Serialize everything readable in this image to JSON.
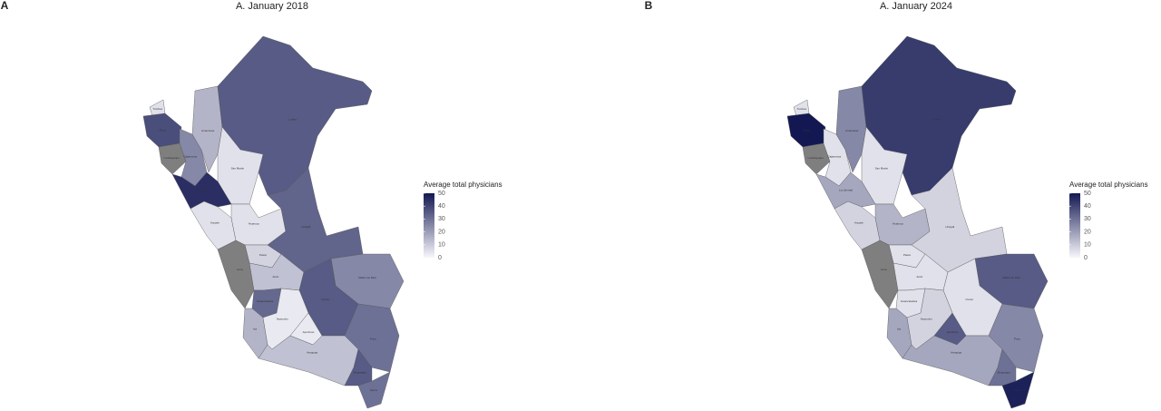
{
  "chart_data": [
    {
      "type": "choropleth",
      "panel_label": "A",
      "title": "A. January 2018",
      "legend_title": "Average total physicians",
      "lim": [
        0,
        50
      ],
      "legend_ticks": [
        0,
        10,
        20,
        30,
        40,
        50
      ],
      "low_color": "#f7f7fb",
      "high_color": "#131852",
      "na_color": "#7f7f7f",
      "regions": [
        {
          "name": "Tumbes",
          "value": 5
        },
        {
          "name": "Piura",
          "value": 38
        },
        {
          "name": "Lambayeque",
          "value": null
        },
        {
          "name": "Cajamarca",
          "value": 25
        },
        {
          "name": "Amazonas",
          "value": 15
        },
        {
          "name": "Loreto",
          "value": 35
        },
        {
          "name": "San Martin",
          "value": 5
        },
        {
          "name": "La Libertad",
          "value": 45
        },
        {
          "name": "Ancash",
          "value": 5
        },
        {
          "name": "Huanuco",
          "value": 5
        },
        {
          "name": "Pasco",
          "value": 8
        },
        {
          "name": "Ucayali",
          "value": 33
        },
        {
          "name": "Lima",
          "value": null
        },
        {
          "name": "Junin",
          "value": 12
        },
        {
          "name": "Madre de Dios",
          "value": 25
        },
        {
          "name": "Cusco",
          "value": 35
        },
        {
          "name": "Huancavelica",
          "value": 32
        },
        {
          "name": "Ica",
          "value": 15
        },
        {
          "name": "Ayacucho",
          "value": 3
        },
        {
          "name": "Apurimac",
          "value": 3
        },
        {
          "name": "Puno",
          "value": 30
        },
        {
          "name": "Arequipa",
          "value": 12
        },
        {
          "name": "Moquegua",
          "value": 35
        },
        {
          "name": "Tacna",
          "value": 30
        }
      ]
    },
    {
      "type": "choropleth",
      "panel_label": "B",
      "title": "A. January 2024",
      "legend_title": "Average total physicians",
      "lim": [
        0,
        50
      ],
      "legend_ticks": [
        0,
        10,
        20,
        30,
        40,
        50
      ],
      "low_color": "#f7f7fb",
      "high_color": "#131852",
      "na_color": "#7f7f7f",
      "regions": [
        {
          "name": "Tumbes",
          "value": 5
        },
        {
          "name": "Piura",
          "value": 50
        },
        {
          "name": "Lambayeque",
          "value": null
        },
        {
          "name": "Cajamarca",
          "value": 5
        },
        {
          "name": "Amazonas",
          "value": 25
        },
        {
          "name": "Loreto",
          "value": 42
        },
        {
          "name": "San Martin",
          "value": 5
        },
        {
          "name": "La Libertad",
          "value": 18
        },
        {
          "name": "Ancash",
          "value": 8
        },
        {
          "name": "Huanuco",
          "value": 15
        },
        {
          "name": "Pasco",
          "value": 5
        },
        {
          "name": "Ucayali",
          "value": 8
        },
        {
          "name": "Lima",
          "value": null
        },
        {
          "name": "Junin",
          "value": 5
        },
        {
          "name": "Madre de Dios",
          "value": 35
        },
        {
          "name": "Cusco",
          "value": 5
        },
        {
          "name": "Huancavelica",
          "value": 5
        },
        {
          "name": "Ica",
          "value": 18
        },
        {
          "name": "Ayacucho",
          "value": 8
        },
        {
          "name": "Apurimac",
          "value": 35
        },
        {
          "name": "Puno",
          "value": 25
        },
        {
          "name": "Arequipa",
          "value": 18
        },
        {
          "name": "Moquegua",
          "value": 30
        },
        {
          "name": "Tacna",
          "value": 48
        }
      ]
    }
  ]
}
